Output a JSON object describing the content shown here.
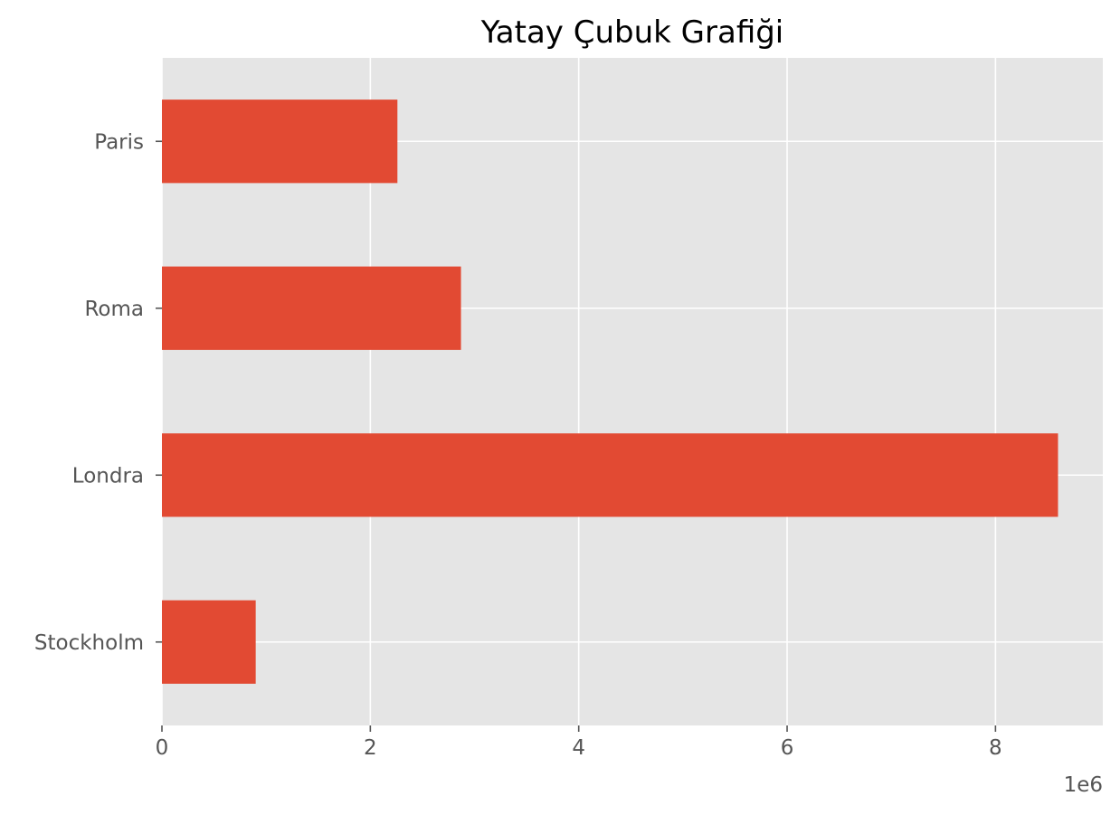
{
  "chart_data": {
    "type": "bar",
    "orientation": "horizontal",
    "title": "Yatay Çubuk Grafiği",
    "xlabel": "",
    "ylabel": "",
    "categories": [
      "Paris",
      "Roma",
      "Londra",
      "Stockholm"
    ],
    "values": [
      2260000,
      2870000,
      8600000,
      900000
    ],
    "xlim": [
      0,
      9030000
    ],
    "xticks": [
      0,
      2000000,
      4000000,
      6000000,
      8000000
    ],
    "xtick_labels": [
      "0",
      "2",
      "4",
      "6",
      "8"
    ],
    "x_offset_label": "1e6",
    "grid": true,
    "legend": "none",
    "colors": {
      "bar": "#E24A33",
      "plot_background": "#E5E5E5",
      "grid": "#FFFFFF",
      "tick_label": "#555555"
    }
  }
}
